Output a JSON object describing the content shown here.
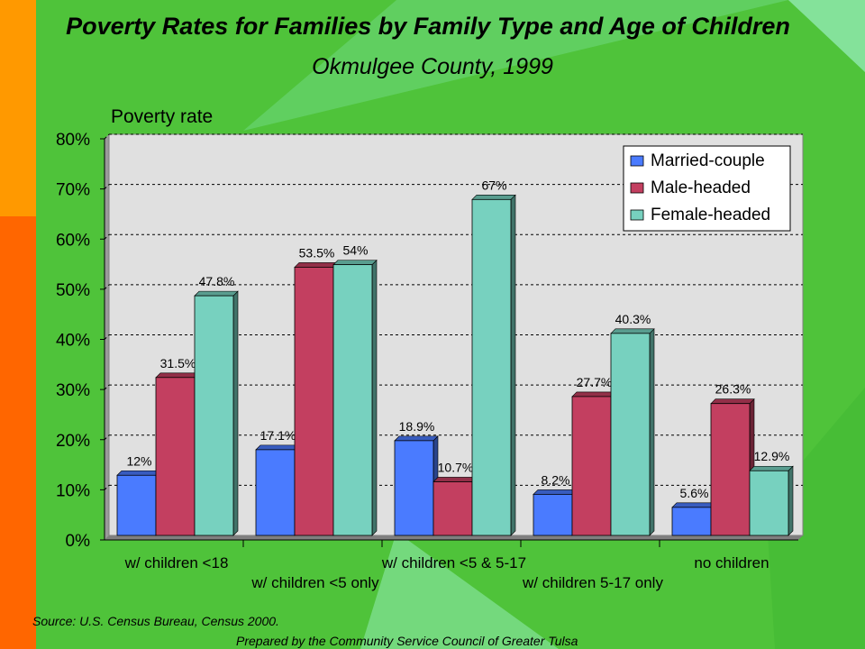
{
  "colors": {
    "married": "#4a7bff",
    "male": "#c33f60",
    "female": "#77d1bf",
    "plot_bg": "#e0e0e0",
    "page_bg": "#4fc33a",
    "accent_orange": "#ff9900",
    "accent_red": "#ff6600"
  },
  "footer": {
    "source": "Source:  U.S. Census Bureau, Census 2000.",
    "prepared": "Prepared by the Community Service Council of Greater Tulsa"
  },
  "chart_data": {
    "type": "bar",
    "title": "Poverty Rates for Families by Family Type and Age of Children",
    "subtitle": "Okmulgee County, 1999",
    "ylabel": "Poverty rate",
    "xlabel": "",
    "ylim": [
      0,
      80
    ],
    "yticks": [
      "0%",
      "10%",
      "20%",
      "30%",
      "40%",
      "50%",
      "60%",
      "70%",
      "80%"
    ],
    "grid": true,
    "legend_position": "top-right",
    "categories": [
      "w/ children <18",
      "w/ children <5 only",
      "w/ children <5 & 5-17",
      "w/ children 5-17 only",
      "no children"
    ],
    "series": [
      {
        "name": "Married-couple",
        "values": [
          12,
          17.1,
          18.9,
          8.2,
          5.6
        ],
        "labels": [
          "12%",
          "17.1%",
          "18.9%",
          "8.2%",
          "5.6%"
        ]
      },
      {
        "name": "Male-headed",
        "values": [
          31.5,
          53.5,
          10.7,
          27.7,
          26.3
        ],
        "labels": [
          "31.5%",
          "53.5%",
          "10.7%",
          "27.7%",
          "26.3%"
        ]
      },
      {
        "name": "Female-headed",
        "values": [
          47.8,
          54,
          67,
          40.3,
          12.9
        ],
        "labels": [
          "47.8%",
          "54%",
          "67%",
          "40.3%",
          "12.9%"
        ]
      }
    ]
  }
}
